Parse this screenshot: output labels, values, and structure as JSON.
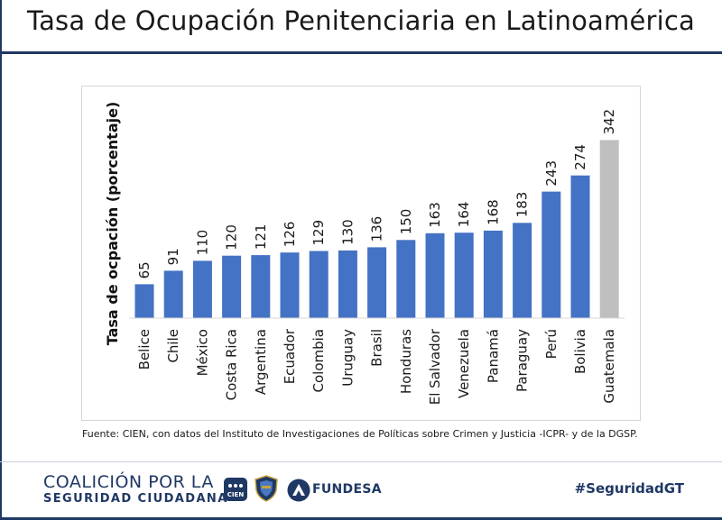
{
  "title": "Tasa de Ocupación Penitenciaria en Latinoamérica",
  "source_note": "Fuente: CIEN, con datos del Instituto de Investigaciones de Políticas sobre Crimen y Justicia -ICPR- y de la DGSP.",
  "footer": {
    "coalicion_line1": "COALICIÓN POR LA",
    "coalicion_line2": "SEGURIDAD CIUDADANA",
    "cien_logo_text": "CIEN",
    "fundesa_text": "FUNDESA",
    "hashtag": "#SeguridadGT"
  },
  "colors": {
    "bar": "#4472c4",
    "highlight_bar": "#bfbfbf",
    "navy": "#1f3864"
  },
  "chart_data": {
    "type": "bar",
    "title": "Tasa de Ocupación Penitenciaria en Latinoamérica",
    "xlabel": "",
    "ylabel": "Tasa de ocpación (porcentaje)",
    "ylim": [
      0,
      360
    ],
    "grid": false,
    "categories": [
      "Belice",
      "Chile",
      "México",
      "Costa Rica",
      "Argentina",
      "Ecuador",
      "Colombia",
      "Uruguay",
      "Brasil",
      "Honduras",
      "El Salvador",
      "Venezuela",
      "Panamá",
      "Paraguay",
      "Perú",
      "Bolivia",
      "Guatemala"
    ],
    "values": [
      65,
      91,
      110,
      120,
      121,
      126,
      129,
      130,
      136,
      150,
      163,
      164,
      168,
      183,
      243,
      274,
      342
    ],
    "highlight": "Guatemala",
    "data_labels": true
  }
}
